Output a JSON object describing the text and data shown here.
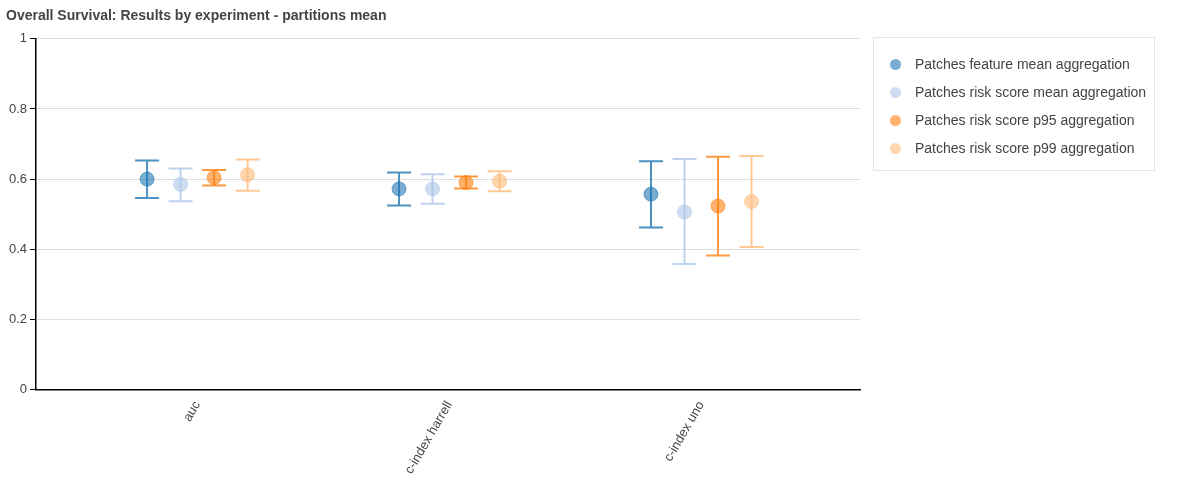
{
  "chart_data": {
    "type": "scatter",
    "title": "Overall Survival: Results by experiment - partitions mean",
    "categories": [
      "auc",
      "c-index harrell",
      "c-index uno"
    ],
    "series": [
      {
        "name": "Patches feature mean aggregation",
        "color": "#1f77b4",
        "values": [
          0.6,
          0.572,
          0.557
        ],
        "errors": [
          [
            0.546,
            0.653
          ],
          [
            0.525,
            0.619
          ],
          [
            0.462,
            0.651
          ]
        ]
      },
      {
        "name": "Patches risk score mean aggregation",
        "color": "#aec7e8",
        "values": [
          0.585,
          0.572,
          0.506
        ],
        "errors": [
          [
            0.537,
            0.63
          ],
          [
            0.53,
            0.614
          ],
          [
            0.358,
            0.657
          ]
        ]
      },
      {
        "name": "Patches risk score p95 aggregation",
        "color": "#ff7f0e",
        "values": [
          0.604,
          0.59,
          0.523
        ],
        "errors": [
          [
            0.582,
            0.626
          ],
          [
            0.573,
            0.607
          ],
          [
            0.382,
            0.664
          ]
        ]
      },
      {
        "name": "Patches risk score p99 aggregation",
        "color": "#ffbb78",
        "values": [
          0.612,
          0.594,
          0.536
        ],
        "errors": [
          [
            0.567,
            0.656
          ],
          [
            0.565,
            0.622
          ],
          [
            0.406,
            0.666
          ]
        ]
      }
    ],
    "ylim": [
      0,
      1
    ],
    "yticks": [
      0,
      0.2,
      0.4,
      0.6,
      0.8,
      1
    ],
    "grid": "y",
    "legend": "top right",
    "marker": "circle"
  }
}
